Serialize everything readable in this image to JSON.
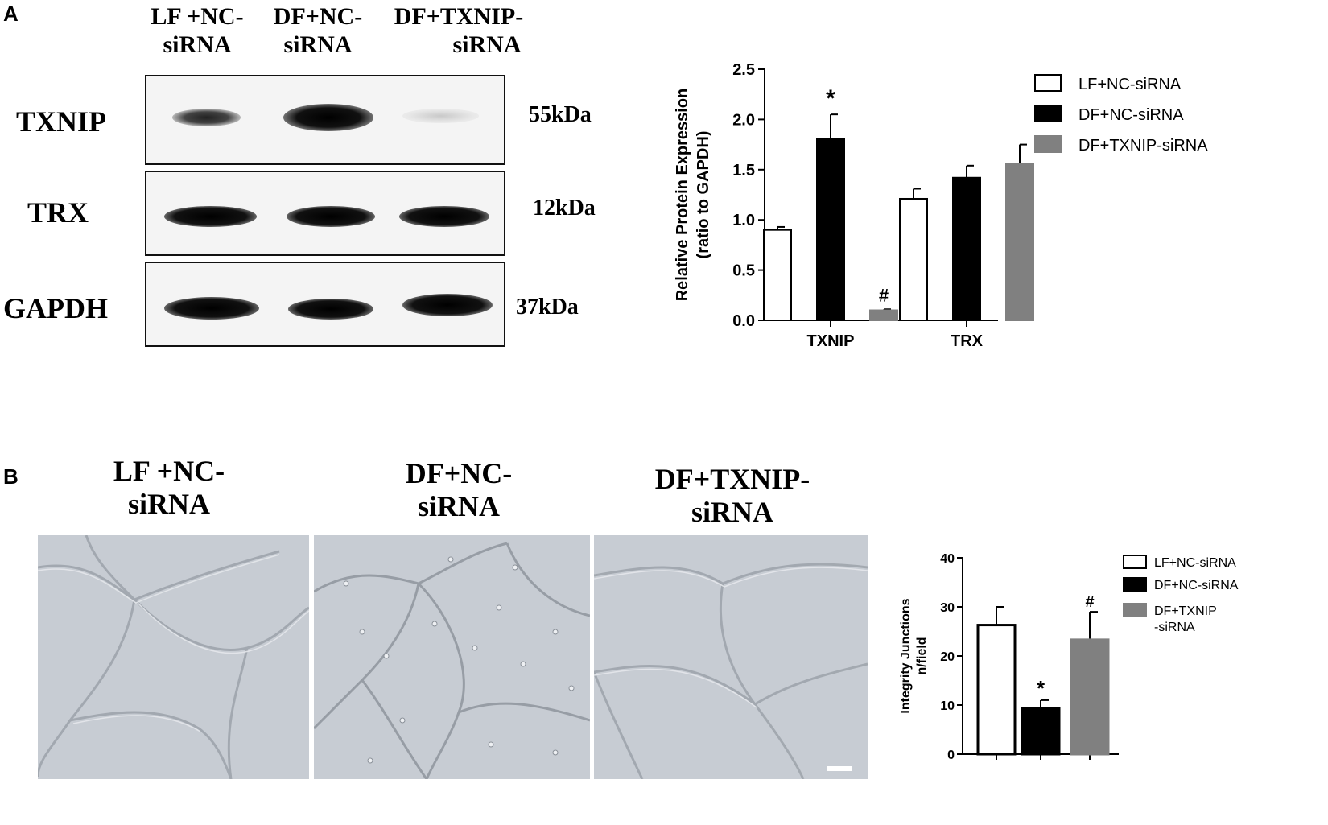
{
  "panel_a": {
    "letter": "A",
    "lanes": [
      {
        "line1": "LF +NC-",
        "line2": "siRNA"
      },
      {
        "line1": "DF+NC-",
        "line2": "siRNA"
      },
      {
        "line1": "DF+TXNIP-",
        "line2": "siRNA"
      }
    ],
    "blots": [
      {
        "protein": "TXNIP",
        "kda": "55kDa"
      },
      {
        "protein": "TRX",
        "kda": "12kDa"
      },
      {
        "protein": "GAPDH",
        "kda": "37kDa"
      }
    ]
  },
  "panel_b": {
    "letter": "B",
    "image_labels": [
      {
        "line1": "LF +NC-",
        "line2": "siRNA"
      },
      {
        "line1": "DF+NC-",
        "line2": "siRNA"
      },
      {
        "line1": "DF+TXNIP-",
        "line2": "siRNA"
      }
    ]
  },
  "colors": {
    "series1": "#ffffff",
    "series2": "#000000",
    "series3": "#808080"
  },
  "chart_data": [
    {
      "type": "bar",
      "xlabel": "",
      "ylabel": "Relative Protein Expression (ratio to GAPDH)",
      "ylabel_lines": [
        "Relative Protein Expression",
        "(ratio to GAPDH)"
      ],
      "categories": [
        "TXNIP",
        "TRX"
      ],
      "ylim": [
        0,
        2.5
      ],
      "yticks": [
        0.0,
        0.5,
        1.0,
        1.5,
        2.0,
        2.5
      ],
      "ytick_labels": [
        "0.0",
        "0.5",
        "1.0",
        "1.5",
        "2.0",
        "2.5"
      ],
      "legend_position": "top-right",
      "series": [
        {
          "name": "LF+NC-siRNA",
          "values": [
            0.9,
            1.21
          ],
          "errors": [
            0.03,
            0.1
          ],
          "annotations": [
            "",
            ""
          ]
        },
        {
          "name": "DF+NC-siRNA",
          "values": [
            1.81,
            1.42
          ],
          "errors": [
            0.24,
            0.12
          ],
          "annotations": [
            "*",
            ""
          ]
        },
        {
          "name": "DF+TXNIP-siRNA",
          "values": [
            0.1,
            1.56
          ],
          "errors": [
            0.01,
            0.19
          ],
          "annotations": [
            "#",
            ""
          ]
        }
      ]
    },
    {
      "type": "bar",
      "xlabel": "",
      "ylabel": "Integrity Junctions n/field",
      "ylabel_lines": [
        "Integrity Junctions",
        "n/field"
      ],
      "categories": [
        "LF+NC-siRNA",
        "DF+NC-siRNA",
        "DF+TXNIP-siRNA"
      ],
      "ylim": [
        0,
        40
      ],
      "yticks": [
        0,
        10,
        20,
        30,
        40
      ],
      "ytick_labels": [
        "0",
        "10",
        "20",
        "30",
        "40"
      ],
      "legend_position": "top-right",
      "legend_entries": [
        {
          "lines": [
            "LF+NC-siRNA"
          ]
        },
        {
          "lines": [
            "DF+NC-siRNA"
          ]
        },
        {
          "lines": [
            "DF+TXNIP",
            "-siRNA"
          ]
        }
      ],
      "values": [
        26.3,
        9.3,
        23.3
      ],
      "errors": [
        3.7,
        1.7,
        5.7
      ],
      "annotations": [
        "",
        "*",
        "#"
      ]
    }
  ]
}
